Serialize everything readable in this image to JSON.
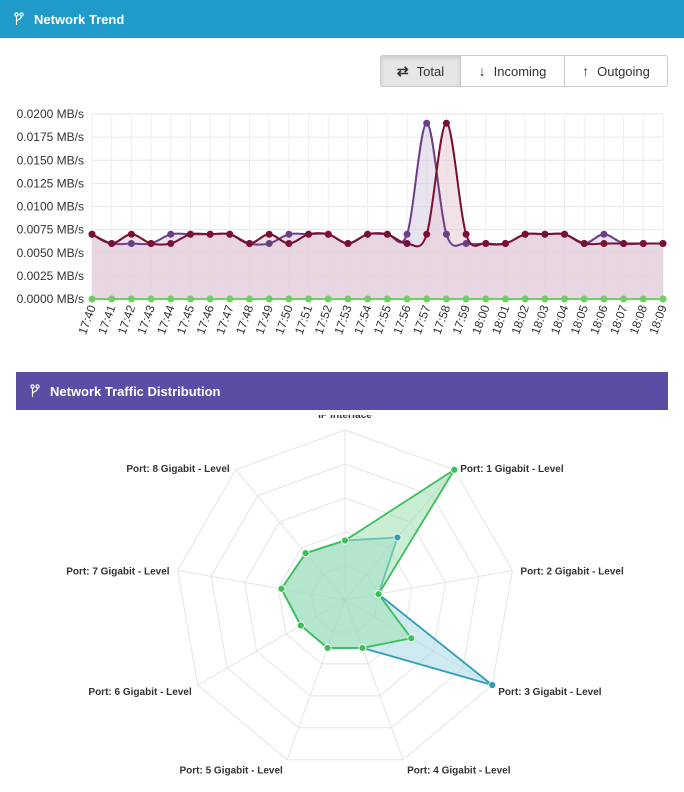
{
  "header": {
    "title": "Network Trend",
    "icon": "branch-icon",
    "color": "#1f9ac9"
  },
  "toggle": {
    "total": {
      "label": "Total",
      "icon": "swap-icon",
      "glyph": "⇄",
      "active": true
    },
    "incoming": {
      "label": "Incoming",
      "icon": "arrow-down-icon",
      "glyph": "↓"
    },
    "outgoing": {
      "label": "Outgoing",
      "icon": "arrow-up-icon",
      "glyph": "↑"
    }
  },
  "distribution": {
    "title": "Network Traffic Distribution",
    "icon": "branch-icon",
    "color": "#5b4da3"
  },
  "chart_data": [
    {
      "type": "area",
      "title": "",
      "xlabel": "",
      "ylabel": "",
      "ylim": [
        0,
        0.02
      ],
      "yticks": [
        "0.0000 MB/s",
        "0.0025 MB/s",
        "0.0050 MB/s",
        "0.0075 MB/s",
        "0.0100 MB/s",
        "0.0125 MB/s",
        "0.0150 MB/s",
        "0.0175 MB/s",
        "0.0200 MB/s"
      ],
      "yunit": "MB/s",
      "grid": true,
      "categories": [
        "17:40",
        "17:41",
        "17:42",
        "17:43",
        "17:44",
        "17:45",
        "17:46",
        "17:47",
        "17:48",
        "17:49",
        "17:50",
        "17:51",
        "17:52",
        "17:53",
        "17:54",
        "17:55",
        "17:56",
        "17:57",
        "17:58",
        "17:59",
        "18:00",
        "18:01",
        "18:02",
        "18:03",
        "18:04",
        "18:05",
        "18:06",
        "18:07",
        "18:08",
        "18:09"
      ],
      "series": [
        {
          "color": "#6b3f85",
          "fill": "#d8d0e4",
          "values": [
            0.007,
            0.006,
            0.006,
            0.006,
            0.007,
            0.007,
            0.007,
            0.007,
            0.006,
            0.006,
            0.007,
            0.007,
            0.007,
            0.006,
            0.007,
            0.007,
            0.007,
            0.019,
            0.007,
            0.006,
            0.006,
            0.006,
            0.007,
            0.007,
            0.007,
            0.006,
            0.007,
            0.006,
            0.006,
            0.006
          ]
        },
        {
          "color": "#7a0f33",
          "fill": "#e8cfd9",
          "values": [
            0.007,
            0.006,
            0.007,
            0.006,
            0.006,
            0.007,
            0.007,
            0.007,
            0.006,
            0.007,
            0.006,
            0.007,
            0.007,
            0.006,
            0.007,
            0.007,
            0.006,
            0.007,
            0.019,
            0.007,
            0.006,
            0.006,
            0.007,
            0.007,
            0.007,
            0.006,
            0.006,
            0.006,
            0.006,
            0.006
          ]
        },
        {
          "color": "#6fcf62",
          "fill": "none",
          "values": [
            0,
            0,
            0,
            0,
            0,
            0,
            0,
            0,
            0,
            0,
            0,
            0,
            0,
            0,
            0,
            0,
            0,
            0,
            0,
            0,
            0,
            0,
            0,
            0,
            0,
            0,
            0,
            0,
            0,
            0
          ]
        }
      ]
    },
    {
      "type": "radar",
      "title": "",
      "axes": [
        "IP Interface",
        "Port:  1 Gigabit - Level",
        "Port:  2 Gigabit - Level",
        "Port:  3 Gigabit - Level",
        "Port:  4 Gigabit - Level",
        "Port:  5 Gigabit - Level",
        "Port:  6 Gigabit - Level",
        "Port:  7 Gigabit - Level",
        "Port:  8 Gigabit - Level"
      ],
      "rmax": 10,
      "rings": 5,
      "series": [
        {
          "color": "#2f9cb8",
          "fill": "#a8d9e6",
          "values": [
            3.5,
            4.8,
            2.0,
            10.0,
            3.0,
            3.0,
            3.0,
            3.8,
            3.6
          ]
        },
        {
          "color": "#3cbf5a",
          "fill": "#9ee0ae",
          "values": [
            3.5,
            10.0,
            2.0,
            4.5,
            3.0,
            3.0,
            3.0,
            3.8,
            3.6
          ]
        }
      ]
    }
  ]
}
